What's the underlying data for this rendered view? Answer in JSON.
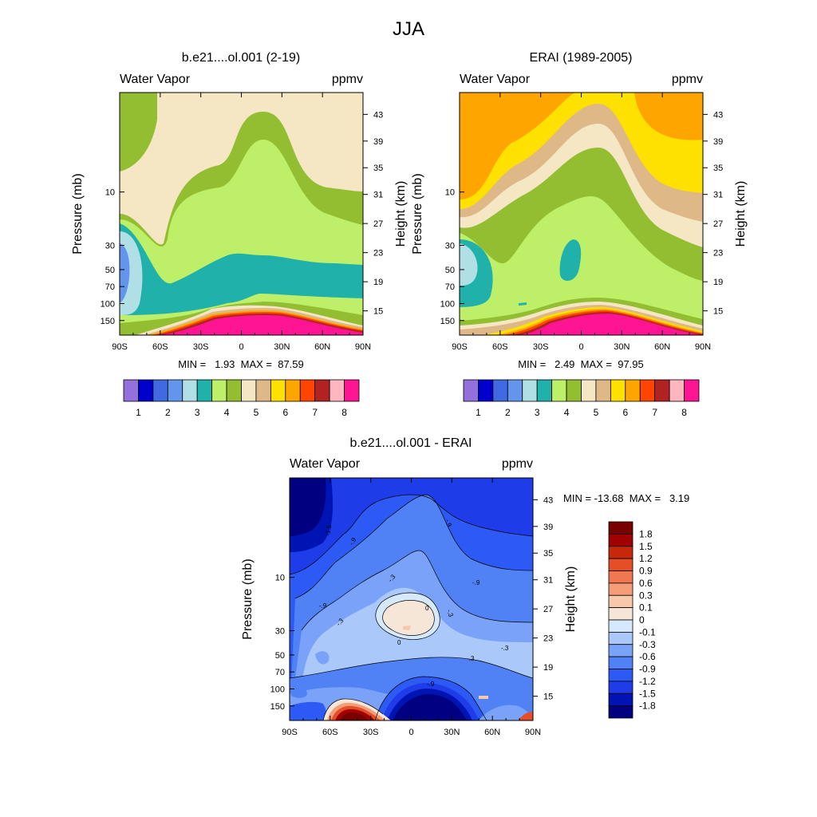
{
  "page_title": "JJA",
  "colors": {
    "seq": [
      "#9370db",
      "#0000cd",
      "#4169e1",
      "#6495ed",
      "#b0e0e6",
      "#20b2aa",
      "#bdf068",
      "#93be32",
      "#f5e6c4",
      "#deb887",
      "#ffe100",
      "#ffa500",
      "#ff4500",
      "#b22222",
      "#ffb6c1",
      "#ff1493"
    ],
    "diff": [
      "#000080",
      "#0014b4",
      "#1e3ce8",
      "#2d5af5",
      "#5082f5",
      "#7aa2f8",
      "#aac8fa",
      "#d6e8fc",
      "#f5e6d7",
      "#f7c8aa",
      "#f59c78",
      "#f07850",
      "#e64e28",
      "#c8280a",
      "#a00000",
      "#780000"
    ]
  },
  "chart_data": [
    {
      "type": "heatmap",
      "panel": "model",
      "title": "b.e21....ol.001 (2-19)",
      "left_label": "Water Vapor",
      "right_label": "ppmv",
      "ylabel": "Pressure (mb)",
      "ylabel_right": "Height (km)",
      "x_ticks": [
        "90S",
        "60S",
        "30S",
        "0",
        "30N",
        "60N",
        "90N"
      ],
      "y_ticks": [
        "10",
        "30",
        "50",
        "70",
        "100",
        "150"
      ],
      "y_ticks_right": [
        "43",
        "39",
        "35",
        "31",
        "27",
        "23",
        "19",
        "15"
      ],
      "stats": "MIN =   1.93  MAX =  87.59",
      "colorbar_labels": [
        "1",
        "2",
        "3",
        "4",
        "5",
        "6",
        "7",
        "8"
      ]
    },
    {
      "type": "heatmap",
      "panel": "obs",
      "title": "ERAI (1989-2005)",
      "left_label": "Water Vapor",
      "right_label": "ppmv",
      "ylabel": "Pressure (mb)",
      "ylabel_right": "Height (km)",
      "x_ticks": [
        "90S",
        "60S",
        "30S",
        "0",
        "30N",
        "60N",
        "90N"
      ],
      "y_ticks": [
        "10",
        "30",
        "50",
        "70",
        "100",
        "150"
      ],
      "y_ticks_right": [
        "43",
        "39",
        "35",
        "31",
        "27",
        "23",
        "19",
        "15"
      ],
      "stats": "MIN =   2.49  MAX =  97.95",
      "colorbar_labels": [
        "1",
        "2",
        "3",
        "4",
        "5",
        "6",
        "7",
        "8"
      ]
    },
    {
      "type": "heatmap",
      "panel": "diff",
      "title": "b.e21....ol.001 - ERAI",
      "left_label": "Water Vapor",
      "right_label": "ppmv",
      "ylabel": "Pressure (mb)",
      "ylabel_right": "Height (km)",
      "x_ticks": [
        "90S",
        "60S",
        "30S",
        "0",
        "30N",
        "60N",
        "90N"
      ],
      "y_ticks": [
        "10",
        "30",
        "50",
        "70",
        "100",
        "150"
      ],
      "y_ticks_right": [
        "43",
        "39",
        "35",
        "31",
        "27",
        "23",
        "19",
        "15"
      ],
      "stats": "MIN = -13.68  MAX =   3.19",
      "colorbar_labels": [
        "1.8",
        "1.5",
        "1.2",
        "0.9",
        "0.6",
        "0.3",
        "0.1",
        "0",
        "-0.1",
        "-0.3",
        "-0.6",
        "-0.9",
        "-1.2",
        "-1.5",
        "-1.8"
      ],
      "contour_labels": [
        "-1.5",
        "-.9",
        "-.9",
        "-.9",
        "-.9",
        "-.3",
        "-.3",
        "-.3",
        "-.3",
        "-.3",
        "0",
        "0",
        "-.9"
      ]
    }
  ]
}
